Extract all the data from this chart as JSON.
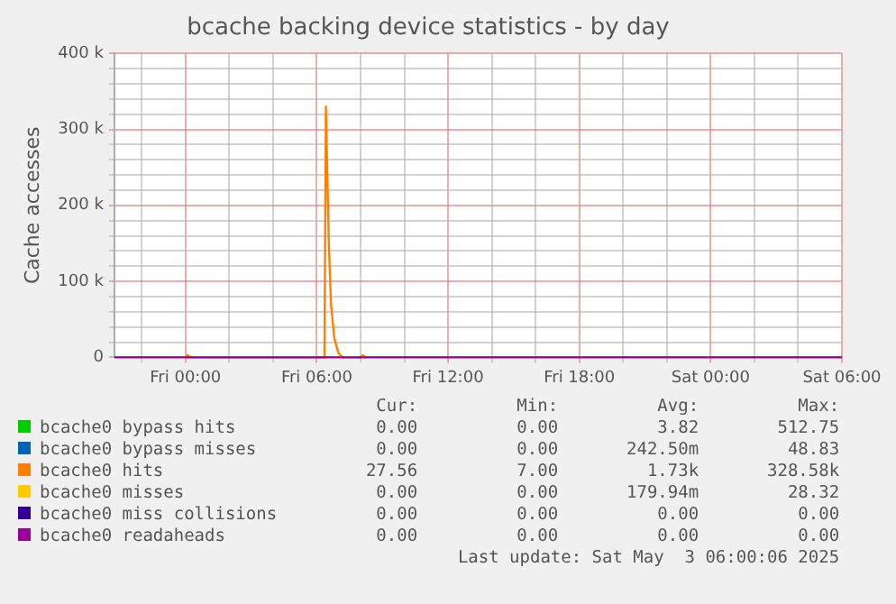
{
  "chart_data": {
    "type": "line",
    "title": "bcache backing device statistics - by day",
    "ylabel": "Cache accesses",
    "xlim": [
      "2025-05-01T20:45",
      "2025-05-03T06:00"
    ],
    "xticks": [
      {
        "value": "2025-05-01T22:00",
        "label": null
      },
      {
        "value": "2025-05-02T00:00",
        "label": "Fri 00:00"
      },
      {
        "value": "2025-05-02T02:00",
        "label": null
      },
      {
        "value": "2025-05-02T04:00",
        "label": null
      },
      {
        "value": "2025-05-02T06:00",
        "label": "Fri 06:00"
      },
      {
        "value": "2025-05-02T08:00",
        "label": null
      },
      {
        "value": "2025-05-02T10:00",
        "label": null
      },
      {
        "value": "2025-05-02T12:00",
        "label": "Fri 12:00"
      },
      {
        "value": "2025-05-02T14:00",
        "label": null
      },
      {
        "value": "2025-05-02T16:00",
        "label": null
      },
      {
        "value": "2025-05-02T18:00",
        "label": "Fri 18:00"
      },
      {
        "value": "2025-05-02T20:00",
        "label": null
      },
      {
        "value": "2025-05-02T22:00",
        "label": null
      },
      {
        "value": "2025-05-03T00:00",
        "label": "Sat 00:00"
      },
      {
        "value": "2025-05-03T02:00",
        "label": null
      },
      {
        "value": "2025-05-03T04:00",
        "label": null
      },
      {
        "value": "2025-05-03T06:00",
        "label": "Sat 06:00"
      }
    ],
    "ylim": [
      0,
      400000
    ],
    "yticks": [
      {
        "value": 0,
        "label": "0"
      },
      {
        "value": 20000,
        "label": null
      },
      {
        "value": 40000,
        "label": null
      },
      {
        "value": 60000,
        "label": null
      },
      {
        "value": 80000,
        "label": null
      },
      {
        "value": 100000,
        "label": "100 k"
      },
      {
        "value": 120000,
        "label": null
      },
      {
        "value": 140000,
        "label": null
      },
      {
        "value": 160000,
        "label": null
      },
      {
        "value": 180000,
        "label": null
      },
      {
        "value": 200000,
        "label": "200 k"
      },
      {
        "value": 220000,
        "label": null
      },
      {
        "value": 240000,
        "label": null
      },
      {
        "value": 260000,
        "label": null
      },
      {
        "value": 280000,
        "label": null
      },
      {
        "value": 300000,
        "label": "300 k"
      },
      {
        "value": 320000,
        "label": null
      },
      {
        "value": 340000,
        "label": null
      },
      {
        "value": 360000,
        "label": null
      },
      {
        "value": 380000,
        "label": null
      },
      {
        "value": 400000,
        "label": "400 k"
      }
    ],
    "grid": true,
    "legend": "bottom",
    "marker": "none",
    "series": [
      {
        "name": "bcache0 bypass hits",
        "color": "#00cc00"
      },
      {
        "name": "bcache0 bypass misses",
        "color": "#0066b3"
      },
      {
        "name": "bcache0 hits",
        "color": "#ff8000",
        "x": [
          "2025-05-02T00:00",
          "2025-05-02T00:06",
          "2025-05-02T00:15",
          "2025-05-02T06:21",
          "2025-05-02T06:25",
          "2025-05-02T06:33",
          "2025-05-02T06:39",
          "2025-05-02T06:48",
          "2025-05-02T07:00",
          "2025-05-02T07:12",
          "2025-05-02T08:00",
          "2025-05-02T08:06",
          "2025-05-02T08:15"
        ],
        "values": [
          0,
          3000,
          0,
          0,
          330000,
          150000,
          70000,
          25000,
          5000,
          0,
          0,
          3000,
          0
        ]
      },
      {
        "name": "bcache0 misses",
        "color": "#ffcc00"
      },
      {
        "name": "bcache0 miss collisions",
        "color": "#330099"
      },
      {
        "name": "bcache0 readaheads",
        "color": "#990099",
        "x": [
          "2025-05-01T20:45",
          "2025-05-03T06:00"
        ],
        "values": [
          0,
          0
        ]
      }
    ],
    "annotations": [
      "Cur:",
      "Min:",
      "Avg:",
      "Max:",
      "0.00",
      "0.00",
      "3.82",
      "512.75",
      "0.00",
      "0.00",
      "242.50m",
      "48.83",
      "27.56",
      "7.00",
      "1.73k",
      "328.58k",
      "0.00",
      "0.00",
      "179.94m",
      "28.32",
      "0.00",
      "0.00",
      "0.00",
      "0.00",
      "0.00",
      "0.00",
      "0.00",
      "0.00",
      "Last update: Sat May  3 06:00:06 2025"
    ]
  }
}
